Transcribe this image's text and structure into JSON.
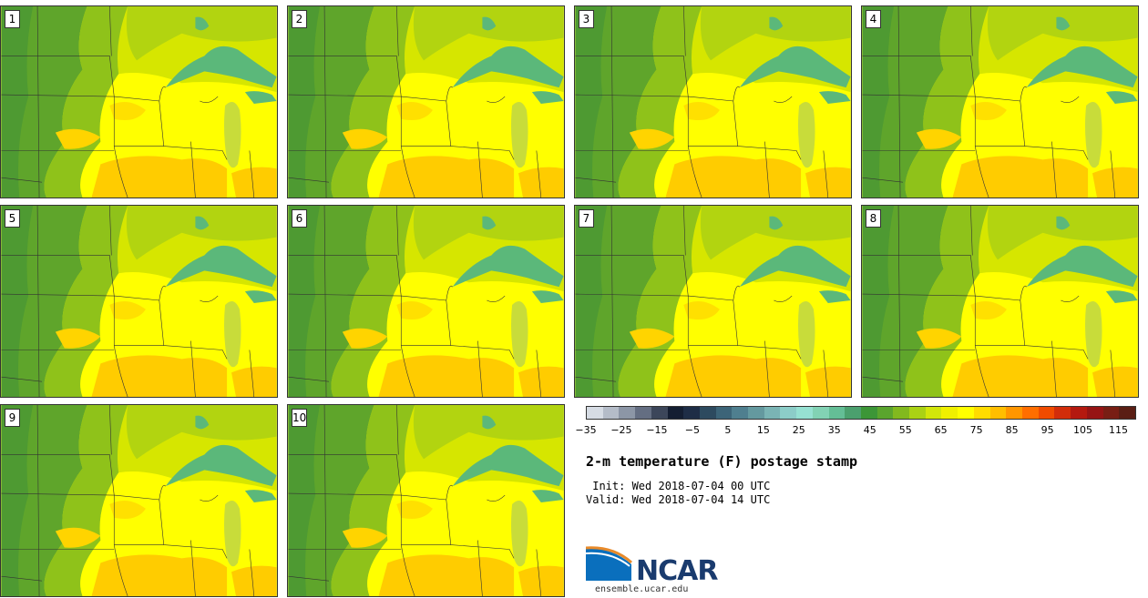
{
  "panels": [
    {
      "label": "1"
    },
    {
      "label": "2"
    },
    {
      "label": "3"
    },
    {
      "label": "4"
    },
    {
      "label": "5"
    },
    {
      "label": "6"
    },
    {
      "label": "7"
    },
    {
      "label": "8"
    },
    {
      "label": "9"
    },
    {
      "label": "10"
    }
  ],
  "colorbar": {
    "colors": [
      "#d6dce4",
      "#b4bcc8",
      "#8c96a6",
      "#646e82",
      "#3c465a",
      "#141e32",
      "#1e2d46",
      "#2d4a5f",
      "#3c6478",
      "#4f7f8f",
      "#64999f",
      "#7ab4b4",
      "#8ccdc8",
      "#96e1d2",
      "#82d2b4",
      "#64be96",
      "#4ba06e",
      "#3c9637",
      "#5aa52d",
      "#82b91e",
      "#aad214",
      "#d2e60a",
      "#f0f000",
      "#ffff00",
      "#ffdc00",
      "#ffbe00",
      "#ff9600",
      "#ff6e00",
      "#f04b00",
      "#d22d0a",
      "#b4190f",
      "#961414",
      "#781e14",
      "#5a1e14"
    ],
    "tick_labels": [
      "−35",
      "−25",
      "−15",
      "−5",
      "5",
      "15",
      "25",
      "35",
      "45",
      "55",
      "65",
      "75",
      "85",
      "95",
      "105",
      "115"
    ],
    "range": [
      -35,
      120
    ]
  },
  "title": "2-m temperature (F) postage stamp",
  "init": " Init: Wed 2018-07-04 00 UTC",
  "valid": "Valid: Wed 2018-07-04 14 UTC",
  "logo": {
    "text": "NCAR",
    "url": "ensemble.ucar.edu"
  }
}
